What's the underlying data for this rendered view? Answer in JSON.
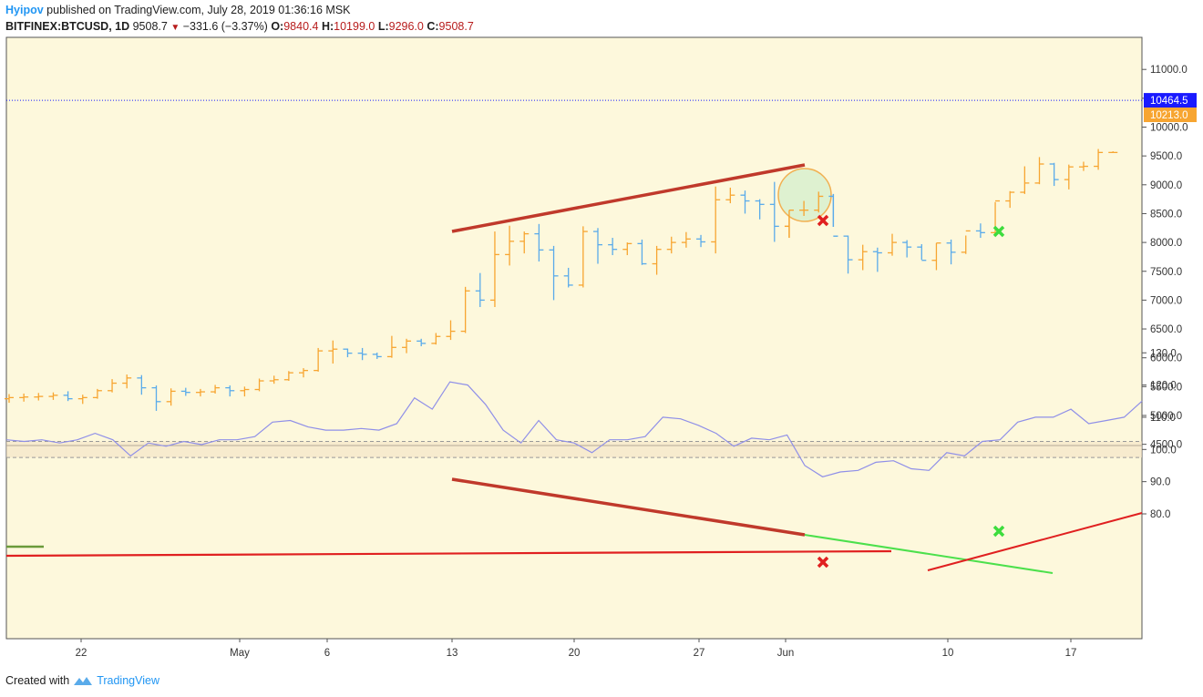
{
  "header": {
    "author": "Hyipov",
    "published_text": "published on TradingView.com, July 28, 2019 01:36:16 MSK",
    "symbol": "BITFINEX:BTCUSD, 1D",
    "last": "9508.7",
    "change": "−331.6 (−3.37%)",
    "o_label": "O:",
    "o_value": "9840.4",
    "h_label": "H:",
    "h_value": "10199.0",
    "l_label": "L:",
    "l_value": "9296.0",
    "c_label": "C:",
    "c_value": "9508.7"
  },
  "footer": {
    "created_with": "Created with",
    "brand": "TradingView"
  },
  "colors": {
    "up": "#f7a531",
    "down": "#5aabea",
    "background": "#fdf8dc",
    "rsi_line": "#8f8fe8"
  },
  "chart_data": [
    {
      "type": "ohlc",
      "ylim": [
        4500,
        11500
      ],
      "yticks": [
        "11000.0",
        "10500.0",
        "10000.0",
        "9500.0",
        "9000.0",
        "8500.0",
        "8000.0",
        "7500.0",
        "7000.0",
        "6500.0",
        "6000.0",
        "5500.0",
        "5000.0",
        "4500.0"
      ],
      "price_labels": [
        {
          "value": "10464.5",
          "color": "#1a1aff",
          "level": 10464.5
        },
        {
          "value": "10213.0",
          "color": "#f7a531",
          "level": 10213.0
        }
      ],
      "bars": [
        [
          5290,
          5370,
          5220,
          5310
        ],
        [
          5310,
          5380,
          5240,
          5320
        ],
        [
          5320,
          5390,
          5260,
          5330
        ],
        [
          5330,
          5400,
          5270,
          5350
        ],
        [
          5350,
          5420,
          5250,
          5290
        ],
        [
          5290,
          5360,
          5200,
          5310
        ],
        [
          5310,
          5460,
          5290,
          5430
        ],
        [
          5430,
          5630,
          5400,
          5560
        ],
        [
          5560,
          5710,
          5470,
          5650
        ],
        [
          5650,
          5700,
          5360,
          5480
        ],
        [
          5480,
          5520,
          5080,
          5240
        ],
        [
          5240,
          5470,
          5170,
          5420
        ],
        [
          5420,
          5480,
          5340,
          5400
        ],
        [
          5400,
          5460,
          5330,
          5410
        ],
        [
          5410,
          5530,
          5380,
          5480
        ],
        [
          5480,
          5520,
          5330,
          5430
        ],
        [
          5430,
          5500,
          5330,
          5450
        ],
        [
          5450,
          5640,
          5420,
          5600
        ],
        [
          5600,
          5690,
          5550,
          5620
        ],
        [
          5620,
          5770,
          5600,
          5740
        ],
        [
          5740,
          5820,
          5660,
          5780
        ],
        [
          5780,
          6170,
          5760,
          6120
        ],
        [
          6120,
          6300,
          5900,
          6150
        ],
        [
          6150,
          6160,
          6010,
          6080
        ],
        [
          6080,
          6170,
          5960,
          6060
        ],
        [
          6060,
          6090,
          5980,
          6020
        ],
        [
          6020,
          6380,
          6000,
          6180
        ],
        [
          6180,
          6330,
          6080,
          6290
        ],
        [
          6290,
          6330,
          6200,
          6250
        ],
        [
          6250,
          6430,
          6230,
          6370
        ],
        [
          6370,
          6650,
          6310,
          6460
        ],
        [
          6460,
          7230,
          6430,
          7160
        ],
        [
          7160,
          7470,
          6880,
          7000
        ],
        [
          7000,
          8190,
          6880,
          7790
        ],
        [
          7790,
          8290,
          7600,
          8020
        ],
        [
          8020,
          8190,
          7810,
          8150
        ],
        [
          8150,
          8320,
          7670,
          7870
        ],
        [
          7870,
          7940,
          7000,
          7420
        ],
        [
          7420,
          7560,
          7220,
          7260
        ],
        [
          7260,
          8280,
          7220,
          8190
        ],
        [
          8190,
          8250,
          7630,
          7960
        ],
        [
          7960,
          8080,
          7780,
          7880
        ],
        [
          7880,
          8000,
          7780,
          7980
        ],
        [
          7980,
          8050,
          7610,
          7630
        ],
        [
          7630,
          7940,
          7440,
          7880
        ],
        [
          7880,
          8100,
          7810,
          8000
        ],
        [
          8000,
          8180,
          7910,
          8060
        ],
        [
          8060,
          8130,
          7920,
          8010
        ],
        [
          8010,
          8970,
          7810,
          8740
        ],
        [
          8740,
          8950,
          8680,
          8820
        ],
        [
          8820,
          8900,
          8500,
          8720
        ],
        [
          8720,
          8750,
          8400,
          8660
        ],
        [
          8660,
          9050,
          8010,
          8280
        ],
        [
          8280,
          8560,
          8080,
          8560
        ],
        [
          8560,
          8720,
          8460,
          8560
        ],
        [
          8560,
          8880,
          8520,
          8800
        ],
        [
          8800,
          8840,
          8270,
          8110
        ],
        [
          8110,
          8120,
          7460,
          7700
        ],
        [
          7700,
          7960,
          7520,
          7840
        ],
        [
          7840,
          7910,
          7490,
          7820
        ],
        [
          7820,
          8150,
          7770,
          8000
        ],
        [
          8000,
          8040,
          7740,
          7920
        ],
        [
          7920,
          7970,
          7700,
          7690
        ],
        [
          7690,
          7990,
          7520,
          7990
        ],
        [
          7990,
          8050,
          7620,
          7830
        ],
        [
          7830,
          8120,
          7800,
          8200
        ],
        [
          8200,
          8330,
          8080,
          8170
        ],
        [
          8170,
          8700,
          8150,
          8720
        ],
        [
          8720,
          8890,
          8600,
          8870
        ],
        [
          8870,
          9320,
          8840,
          9030
        ],
        [
          9030,
          9480,
          9010,
          9360
        ],
        [
          9360,
          9380,
          8980,
          9090
        ],
        [
          9090,
          9350,
          8920,
          9310
        ],
        [
          9310,
          9400,
          9240,
          9320
        ],
        [
          9320,
          9620,
          9260,
          9560
        ],
        [
          9560,
          9580,
          9560,
          9560
        ]
      ]
    },
    {
      "type": "line",
      "ylim": [
        75,
        130
      ],
      "yticks": [
        "130.0",
        "120.0",
        "110.0",
        "100.0",
        "90.0",
        "80.0"
      ],
      "band": [
        97.5,
        102.5
      ],
      "values": [
        103,
        102.5,
        103,
        102,
        103,
        105,
        103,
        98,
        102,
        101,
        102.5,
        101.5,
        103,
        103,
        104,
        108.5,
        109,
        107,
        106,
        106,
        106.5,
        106,
        108,
        116,
        112.5,
        121,
        120,
        114,
        106,
        102,
        109,
        103,
        102,
        99,
        103,
        103,
        104,
        110,
        109.5,
        107.5,
        105,
        101,
        103.5,
        103,
        104.5,
        95,
        91.5,
        93,
        93.5,
        96,
        96.5,
        94,
        93.5,
        99,
        98,
        102.5,
        103,
        108.5,
        110,
        110,
        112.5,
        108,
        109,
        110,
        115
      ],
      "x_labels": [
        "22",
        "May",
        "6",
        "13",
        "20",
        "27",
        "Jun",
        "10",
        "17"
      ]
    }
  ]
}
